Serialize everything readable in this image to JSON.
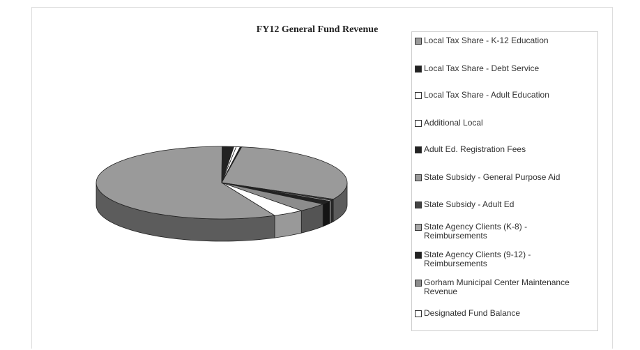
{
  "chart_data": {
    "type": "pie3d",
    "title": "FY12 General Fund Revenue",
    "categories": [
      "Local Tax Share - K-12 Education",
      "Local Tax Share - Debt Service",
      "Local Tax Share - Adult Education",
      "Additional Local",
      "Adult Ed. Registration Fees",
      "State Subsidy - General Purpose Aid",
      "State Subsidy - Adult Ed",
      "State Agency Clients (K-8) - Reimbursements",
      "State Agency Clients (9-12) - Reimbursements",
      "Gorham Municipal Center Maintenance  Revenue",
      "Designated Fund Balance"
    ],
    "values": [
      57,
      1.5,
      0.3,
      0.5,
      0.2,
      30,
      0.5,
      0.5,
      1.5,
      4,
      4
    ],
    "colors": [
      "#9a9a9a",
      "#222222",
      "#ffffff",
      "#ffffff",
      "#222222",
      "#9a9a9a",
      "#444444",
      "#a8a8a8",
      "#222222",
      "#8c8c8c",
      "#ffffff"
    ],
    "legend": "right"
  }
}
